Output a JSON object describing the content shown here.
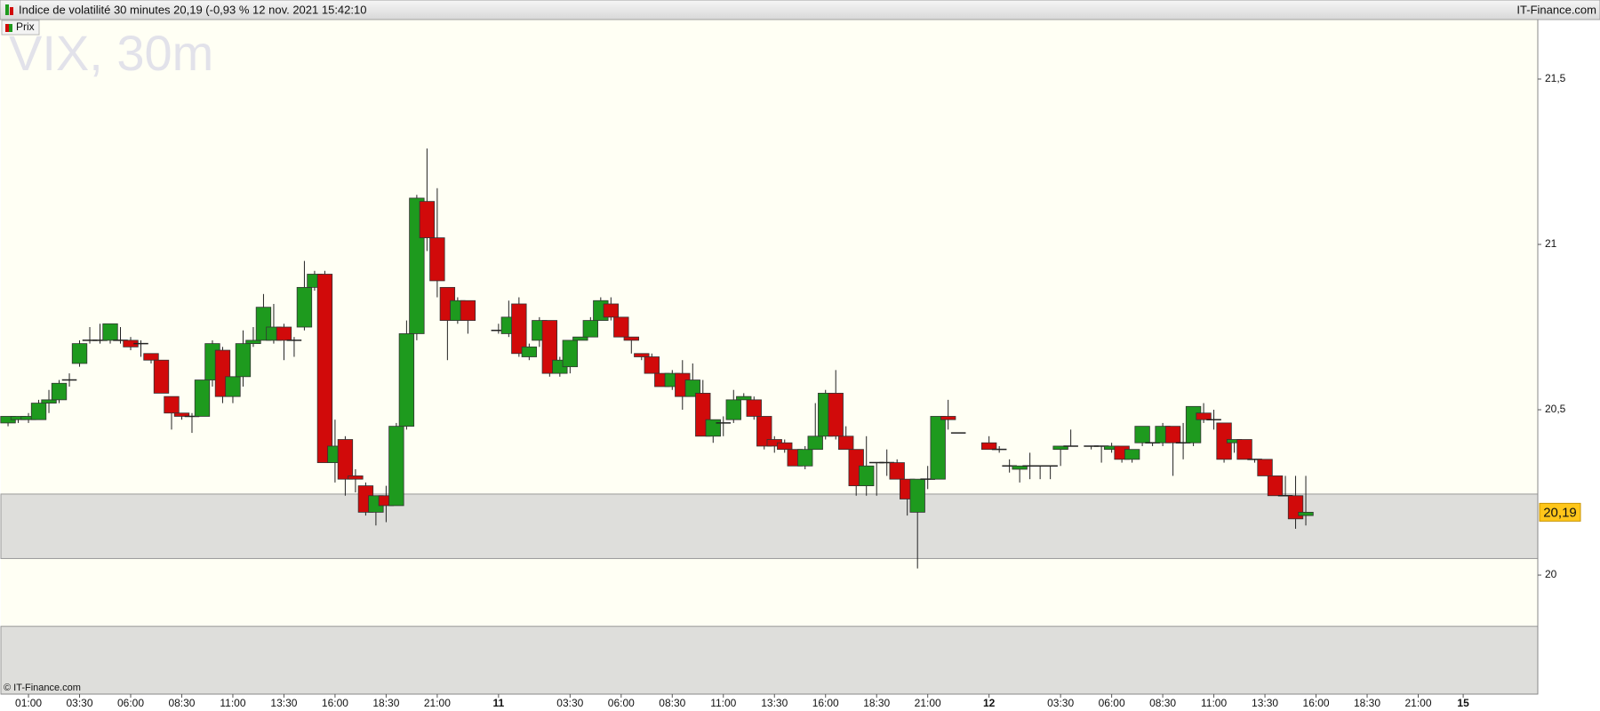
{
  "chart_data": {
    "type": "candlestick",
    "title": "Indice de volatilité 30 minutes 20,19 (-0,93 % 12 nov. 2021 15:42:10",
    "source": "IT-Finance.com",
    "watermark": "VIX, 30m",
    "credit": "© IT-Finance.com",
    "series": [
      {
        "name": "Prix",
        "up_color": "#1e9a1e",
        "down_color": "#d10a0a",
        "x": [
          0,
          0.5,
          1,
          1.5,
          2,
          2.5,
          3,
          3.5,
          4,
          4.5,
          5,
          5.5,
          6,
          6.5,
          7,
          7.5,
          8,
          8.5,
          9,
          9.5,
          10,
          10.5,
          11,
          11.5,
          12,
          12.5,
          13,
          13.5,
          14,
          14.5,
          15,
          15.5,
          16,
          16.5,
          17,
          17.5,
          18,
          18.5,
          19,
          19.5,
          20,
          20.5,
          21,
          21.5,
          22,
          22.5,
          24,
          24.5,
          25,
          25.5,
          26,
          26.5,
          27,
          27.5,
          28,
          28.5,
          29,
          29.5,
          30,
          30.5,
          31,
          31.5,
          32,
          32.5,
          33,
          33.5,
          34,
          34.5,
          35,
          35.5,
          36,
          36.5,
          37,
          37.5,
          38,
          38.5,
          39,
          39.5,
          40,
          40.5,
          41,
          41.5,
          42,
          42.5,
          43,
          43.5,
          44,
          44.5,
          45,
          45.5,
          46,
          46.5,
          48,
          48.5,
          49,
          49.5,
          50,
          50.5,
          51,
          51.5,
          52,
          53,
          53.5,
          54,
          54.5,
          55,
          55.5,
          56,
          56.5,
          57,
          57.5,
          58,
          58.5,
          59,
          59.5,
          60,
          60.5,
          61,
          61.5,
          62,
          62.5,
          63,
          63.5
        ],
        "open": [
          20.46,
          20.47,
          20.47,
          20.47,
          20.52,
          20.53,
          20.59,
          20.64,
          20.71,
          20.71,
          20.71,
          20.71,
          20.71,
          20.7,
          20.67,
          20.65,
          20.54,
          20.49,
          20.48,
          20.48,
          20.59,
          20.68,
          20.54,
          20.6,
          20.7,
          20.71,
          20.71,
          20.75,
          20.71,
          20.75,
          20.87,
          20.91,
          20.34,
          20.41,
          20.3,
          20.27,
          20.19,
          20.24,
          20.21,
          20.45,
          20.73,
          21.13,
          21.02,
          20.87,
          20.77,
          20.83,
          20.74,
          20.73,
          20.82,
          20.66,
          20.71,
          20.77,
          20.61,
          20.63,
          20.71,
          20.72,
          20.77,
          20.82,
          20.78,
          20.72,
          20.67,
          20.66,
          20.61,
          20.57,
          20.61,
          20.54,
          20.55,
          20.42,
          20.46,
          20.47,
          20.53,
          20.53,
          20.48,
          20.41,
          20.4,
          20.38,
          20.33,
          20.38,
          20.42,
          20.55,
          20.42,
          20.38,
          20.27,
          20.34,
          20.34,
          20.34,
          20.29,
          20.19,
          20.29,
          20.29,
          20.48,
          20.43,
          20.4,
          20.38,
          20.33,
          20.32,
          20.33,
          20.33,
          20.33,
          20.38,
          20.39,
          20.39,
          20.39,
          20.38,
          20.39,
          20.35,
          20.4,
          20.4,
          20.4,
          20.45,
          20.4,
          20.4,
          20.49,
          20.47,
          20.46,
          20.4,
          20.41,
          20.35,
          20.35,
          20.3,
          20.24,
          20.24,
          20.18
        ],
        "high": [
          20.48,
          20.48,
          20.49,
          20.53,
          20.56,
          20.59,
          20.61,
          20.71,
          20.75,
          20.76,
          20.76,
          20.75,
          20.72,
          20.71,
          20.67,
          20.65,
          20.54,
          20.49,
          20.49,
          20.59,
          20.71,
          20.69,
          20.6,
          20.74,
          20.75,
          20.85,
          20.82,
          20.76,
          20.72,
          20.95,
          20.92,
          20.92,
          20.47,
          20.42,
          20.32,
          20.28,
          20.24,
          20.27,
          20.46,
          20.77,
          21.15,
          21.29,
          21.17,
          20.87,
          20.84,
          20.83,
          20.76,
          20.83,
          20.84,
          20.7,
          20.78,
          20.77,
          20.66,
          20.71,
          20.72,
          20.78,
          20.84,
          20.84,
          20.78,
          20.72,
          20.67,
          20.67,
          20.61,
          20.62,
          20.65,
          20.64,
          20.59,
          20.47,
          20.48,
          20.56,
          20.55,
          20.54,
          20.48,
          20.42,
          20.41,
          20.38,
          20.39,
          20.52,
          20.56,
          20.62,
          20.45,
          20.38,
          20.42,
          20.34,
          20.38,
          20.35,
          20.29,
          20.29,
          20.33,
          20.48,
          20.53,
          20.43,
          20.42,
          20.39,
          20.35,
          20.33,
          20.37,
          20.33,
          20.33,
          20.39,
          20.44,
          20.39,
          20.39,
          20.4,
          20.39,
          20.38,
          20.45,
          20.4,
          20.46,
          20.45,
          20.46,
          20.51,
          20.52,
          20.5,
          20.46,
          20.41,
          20.41,
          20.35,
          20.35,
          20.3,
          20.3,
          20.3,
          20.3
        ],
        "low": [
          20.45,
          20.46,
          20.46,
          20.47,
          20.49,
          20.52,
          20.57,
          20.63,
          20.7,
          20.7,
          20.7,
          20.7,
          20.68,
          20.66,
          20.64,
          20.55,
          20.44,
          20.47,
          20.43,
          20.48,
          20.57,
          20.52,
          20.52,
          20.57,
          20.69,
          20.71,
          20.7,
          20.65,
          20.66,
          20.74,
          20.86,
          20.34,
          20.28,
          20.24,
          20.25,
          20.18,
          20.15,
          20.16,
          20.21,
          20.44,
          20.71,
          20.98,
          20.84,
          20.65,
          20.76,
          20.73,
          20.73,
          20.72,
          20.66,
          20.65,
          20.69,
          20.6,
          20.6,
          20.61,
          20.71,
          20.72,
          20.77,
          20.77,
          20.72,
          20.67,
          20.65,
          20.61,
          20.57,
          20.56,
          20.5,
          20.54,
          20.42,
          20.4,
          20.42,
          20.46,
          20.53,
          20.47,
          20.38,
          20.37,
          20.37,
          20.33,
          20.32,
          20.38,
          20.41,
          20.41,
          20.38,
          20.24,
          20.24,
          20.24,
          20.3,
          20.29,
          20.18,
          20.02,
          20.26,
          20.29,
          20.44,
          20.43,
          20.38,
          20.37,
          20.31,
          20.28,
          20.29,
          20.29,
          20.29,
          20.33,
          20.39,
          20.38,
          20.34,
          20.37,
          20.34,
          20.34,
          20.39,
          20.39,
          20.39,
          20.3,
          20.35,
          20.39,
          20.46,
          20.44,
          20.34,
          20.37,
          20.35,
          20.34,
          20.3,
          20.24,
          20.24,
          20.14,
          20.15
        ],
        "close": [
          20.48,
          20.48,
          20.48,
          20.52,
          20.53,
          20.58,
          20.59,
          20.7,
          20.71,
          20.71,
          20.76,
          20.71,
          20.69,
          20.7,
          20.65,
          20.55,
          20.49,
          20.48,
          20.48,
          20.59,
          20.7,
          20.54,
          20.6,
          20.7,
          20.71,
          20.81,
          20.75,
          20.71,
          20.71,
          20.87,
          20.91,
          20.34,
          20.39,
          20.29,
          20.29,
          20.19,
          20.24,
          20.21,
          20.45,
          20.73,
          21.14,
          21.02,
          20.89,
          20.77,
          20.83,
          20.77,
          20.74,
          20.78,
          20.67,
          20.69,
          20.77,
          20.61,
          20.65,
          20.71,
          20.72,
          20.77,
          20.83,
          20.78,
          20.72,
          20.71,
          20.66,
          20.61,
          20.57,
          20.61,
          20.54,
          20.59,
          20.42,
          20.47,
          20.46,
          20.53,
          20.54,
          20.48,
          20.39,
          20.39,
          20.38,
          20.33,
          20.38,
          20.42,
          20.55,
          20.42,
          20.38,
          20.27,
          20.33,
          20.34,
          20.34,
          20.29,
          20.23,
          20.29,
          20.29,
          20.48,
          20.47,
          20.43,
          20.38,
          20.38,
          20.33,
          20.33,
          20.33,
          20.33,
          20.33,
          20.39,
          20.39,
          20.39,
          20.39,
          20.39,
          20.35,
          20.38,
          20.45,
          20.4,
          20.45,
          20.4,
          20.4,
          20.51,
          20.47,
          20.47,
          20.35,
          20.41,
          20.35,
          20.35,
          20.3,
          20.24,
          20.24,
          20.17,
          20.19
        ]
      }
    ],
    "last_price": {
      "value": 20.19,
      "label": "20,19"
    },
    "bands": [
      [
        20.05,
        20.245
      ],
      [
        19.64,
        19.845
      ]
    ],
    "xlim": [
      -0.35,
      74.85
    ],
    "ylim": [
      19.64,
      21.68
    ],
    "xticks": [
      {
        "value": 1,
        "label": "01:00"
      },
      {
        "value": 3.5,
        "label": "03:30"
      },
      {
        "value": 6,
        "label": "06:00"
      },
      {
        "value": 8.5,
        "label": "08:30"
      },
      {
        "value": 11,
        "label": "11:00"
      },
      {
        "value": 13.5,
        "label": "13:30"
      },
      {
        "value": 16,
        "label": "16:00"
      },
      {
        "value": 18.5,
        "label": "18:30"
      },
      {
        "value": 21,
        "label": "21:00"
      },
      {
        "value": 24,
        "label": "11"
      },
      {
        "value": 27.5,
        "label": "03:30"
      },
      {
        "value": 30,
        "label": "06:00"
      },
      {
        "value": 32.5,
        "label": "08:30"
      },
      {
        "value": 35,
        "label": "11:00"
      },
      {
        "value": 37.5,
        "label": "13:30"
      },
      {
        "value": 40,
        "label": "16:00"
      },
      {
        "value": 42.5,
        "label": "18:30"
      },
      {
        "value": 45,
        "label": "21:00"
      },
      {
        "value": 48,
        "label": "12"
      },
      {
        "value": 51.5,
        "label": "03:30"
      },
      {
        "value": 54,
        "label": "06:00"
      },
      {
        "value": 56.5,
        "label": "08:30"
      },
      {
        "value": 59,
        "label": "11:00"
      },
      {
        "value": 61.5,
        "label": "13:30"
      },
      {
        "value": 64,
        "label": "16:00"
      },
      {
        "value": 66.5,
        "label": "18:30"
      },
      {
        "value": 69,
        "label": "21:00"
      },
      {
        "value": 71.2,
        "label": "15"
      }
    ],
    "yticks": [
      {
        "value": 20,
        "label": "20"
      },
      {
        "value": 20.5,
        "label": "20,5"
      },
      {
        "value": 21,
        "label": "21"
      },
      {
        "value": 21.5,
        "label": "21,5"
      }
    ]
  }
}
